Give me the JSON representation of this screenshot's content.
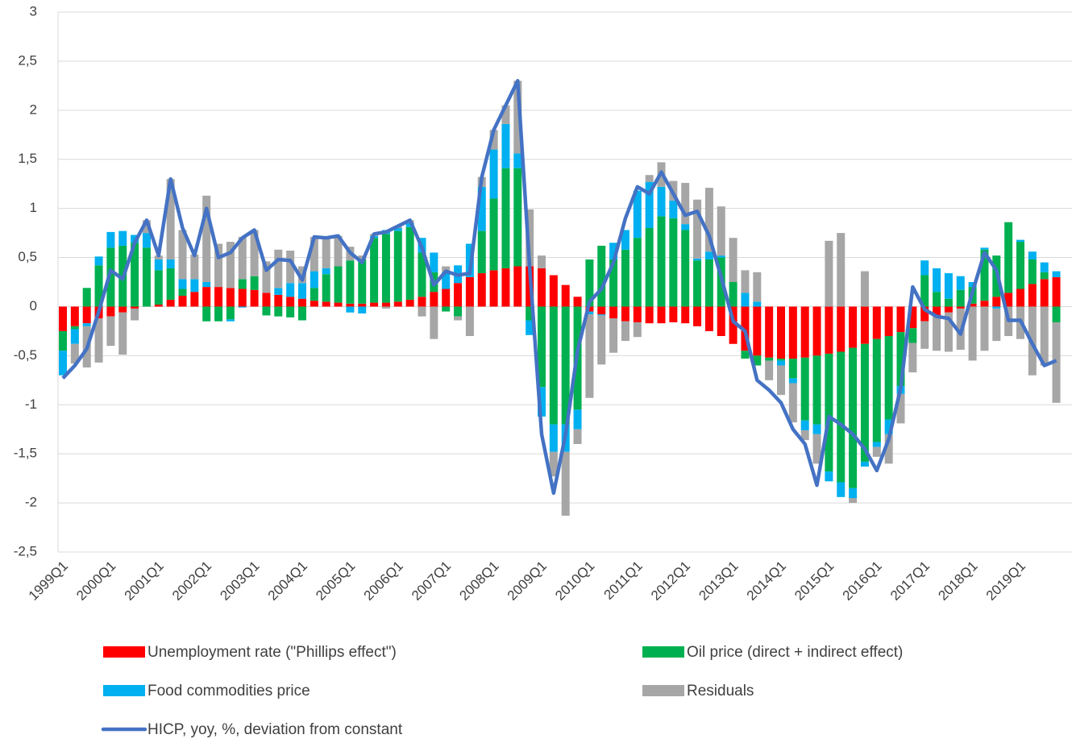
{
  "chart_data": {
    "type": "bar",
    "stacked": true,
    "categories": [
      "1999Q1",
      null,
      null,
      null,
      "2000Q1",
      null,
      null,
      null,
      "2001Q1",
      null,
      null,
      null,
      "2002Q1",
      null,
      null,
      null,
      "2003Q1",
      null,
      null,
      null,
      "2004Q1",
      null,
      null,
      null,
      "2005Q1",
      null,
      null,
      null,
      "2006Q1",
      null,
      null,
      null,
      "2007Q1",
      null,
      null,
      null,
      "2008Q1",
      null,
      null,
      null,
      "2009Q1",
      null,
      null,
      null,
      "2010Q1",
      null,
      null,
      null,
      "2011Q1",
      null,
      null,
      null,
      "2012Q1",
      null,
      null,
      null,
      "2013Q1",
      null,
      null,
      null,
      "2014Q1",
      null,
      null,
      null,
      "2015Q1",
      null,
      null,
      null,
      "2016Q1",
      null,
      null,
      null,
      "2017Q1",
      null,
      null,
      null,
      "2018Q1",
      null,
      null,
      null,
      "2019Q1",
      null,
      null,
      null
    ],
    "ylim": [
      -2.5,
      3
    ],
    "yticks": [
      {
        "value": -2.5,
        "label": "-2,5"
      },
      -2,
      {
        "value": -1.5,
        "label": "-1,5"
      },
      -1,
      {
        "value": -0.5,
        "label": "-0,5"
      },
      0,
      {
        "value": 0.5,
        "label": "0,5"
      },
      1,
      {
        "value": 1.5,
        "label": "1,5"
      },
      2,
      {
        "value": 2.5,
        "label": "2,5"
      },
      3
    ],
    "grid": true,
    "legend": "bottom",
    "series": [
      {
        "name": "Unemployment rate (\"Phillips effect\")",
        "color": "#ff0000",
        "values": [
          -0.25,
          -0.2,
          -0.17,
          -0.12,
          -0.1,
          -0.06,
          -0.02,
          0.0,
          0.02,
          0.07,
          0.11,
          0.15,
          0.2,
          0.2,
          0.19,
          0.18,
          0.17,
          0.14,
          0.12,
          0.1,
          0.08,
          0.06,
          0.05,
          0.04,
          0.03,
          0.03,
          0.04,
          0.04,
          0.05,
          0.07,
          0.1,
          0.15,
          0.18,
          0.24,
          0.3,
          0.34,
          0.37,
          0.39,
          0.41,
          0.41,
          0.39,
          0.32,
          0.22,
          0.1,
          -0.05,
          -0.08,
          -0.12,
          -0.15,
          -0.16,
          -0.17,
          -0.17,
          -0.16,
          -0.17,
          -0.2,
          -0.25,
          -0.3,
          -0.38,
          -0.45,
          -0.5,
          -0.52,
          -0.53,
          -0.53,
          -0.52,
          -0.5,
          -0.48,
          -0.46,
          -0.42,
          -0.38,
          -0.33,
          -0.3,
          -0.26,
          -0.22,
          -0.15,
          -0.1,
          -0.06,
          -0.02,
          0.03,
          0.06,
          0.1,
          0.14,
          0.18,
          0.23,
          0.28,
          0.3
        ]
      },
      {
        "name": "Oil price (direct + indirect effect)",
        "color": "#00b050",
        "values": [
          -0.2,
          -0.03,
          0.19,
          0.42,
          0.6,
          0.62,
          0.65,
          0.6,
          0.35,
          0.32,
          0.07,
          0.0,
          -0.15,
          -0.15,
          -0.13,
          0.1,
          0.14,
          -0.09,
          -0.1,
          -0.11,
          -0.14,
          0.13,
          0.28,
          0.37,
          0.44,
          0.45,
          0.66,
          0.7,
          0.72,
          0.74,
          0.45,
          0.2,
          -0.05,
          -0.1,
          0.0,
          0.43,
          0.73,
          1.02,
          1.0,
          -0.14,
          -0.82,
          -1.2,
          -1.2,
          -1.05,
          0.48,
          0.62,
          0.48,
          0.58,
          0.7,
          0.8,
          0.92,
          0.9,
          0.78,
          0.47,
          0.48,
          0.5,
          0.25,
          -0.08,
          -0.1,
          -0.03,
          -0.02,
          -0.2,
          -0.64,
          -0.7,
          -1.2,
          -1.33,
          -1.43,
          -1.2,
          -1.05,
          -0.85,
          -0.55,
          -0.15,
          0.32,
          0.15,
          0.08,
          0.17,
          0.17,
          0.52,
          0.42,
          0.72,
          0.48,
          0.25,
          0.07,
          -0.16
        ]
      },
      {
        "name": "Food commodities price",
        "color": "#00b0f0",
        "values": [
          -0.25,
          -0.15,
          -0.03,
          0.09,
          0.16,
          0.15,
          0.08,
          0.15,
          0.11,
          0.09,
          0.1,
          0.13,
          0.05,
          0.0,
          -0.02,
          -0.01,
          0.0,
          0.0,
          0.07,
          0.14,
          0.16,
          0.17,
          0.06,
          0.0,
          -0.06,
          -0.07,
          0.02,
          0.04,
          0.03,
          0.04,
          0.15,
          0.2,
          0.17,
          0.18,
          0.34,
          0.45,
          0.5,
          0.45,
          0.15,
          -0.15,
          -0.3,
          -0.28,
          -0.28,
          -0.2,
          -0.03,
          -0.01,
          0.17,
          0.2,
          0.48,
          0.47,
          0.3,
          0.18,
          0.06,
          0.02,
          0.08,
          0.02,
          0.0,
          0.14,
          0.05,
          0.0,
          -0.05,
          -0.05,
          -0.1,
          -0.1,
          -0.1,
          -0.15,
          -0.1,
          -0.05,
          -0.05,
          -0.15,
          -0.08,
          0.0,
          0.15,
          0.24,
          0.26,
          0.14,
          0.05,
          0.02,
          -0.02,
          0.0,
          0.02,
          0.08,
          0.1,
          0.06
        ]
      },
      {
        "name": "Residuals",
        "color": "#a6a6a6",
        "values": [
          0.0,
          -0.2,
          -0.42,
          -0.45,
          -0.3,
          -0.43,
          -0.12,
          0.13,
          0.04,
          0.82,
          0.5,
          0.25,
          0.88,
          0.44,
          0.47,
          0.43,
          0.47,
          0.32,
          0.39,
          0.33,
          0.17,
          0.35,
          0.31,
          0.31,
          0.14,
          0.04,
          0.02,
          -0.02,
          0.02,
          0.03,
          -0.1,
          -0.33,
          0.06,
          -0.04,
          -0.3,
          0.1,
          0.2,
          0.19,
          0.74,
          0.58,
          0.13,
          -0.25,
          -0.65,
          -0.15,
          -0.85,
          -0.5,
          -0.35,
          -0.2,
          -0.15,
          0.07,
          0.25,
          0.2,
          0.42,
          0.6,
          0.65,
          0.5,
          0.45,
          0.23,
          0.3,
          -0.2,
          -0.3,
          -0.4,
          -0.1,
          -0.3,
          0.67,
          0.75,
          -0.05,
          0.36,
          -0.1,
          -0.3,
          -0.3,
          -0.3,
          -0.28,
          -0.35,
          -0.4,
          -0.42,
          -0.55,
          -0.45,
          -0.33,
          -0.3,
          -0.33,
          -0.7,
          -0.6,
          -0.82
        ]
      },
      {
        "name": "HICP, yoy, %, deviation from constant",
        "type": "line",
        "color": "#4472c4",
        "values": [
          -0.73,
          -0.6,
          -0.43,
          -0.05,
          0.37,
          0.28,
          0.65,
          0.88,
          0.52,
          1.3,
          0.8,
          0.52,
          1.0,
          0.5,
          0.55,
          0.7,
          0.78,
          0.37,
          0.48,
          0.47,
          0.27,
          0.71,
          0.7,
          0.72,
          0.55,
          0.45,
          0.74,
          0.76,
          0.82,
          0.88,
          0.6,
          0.22,
          0.36,
          0.32,
          0.34,
          1.32,
          1.8,
          2.05,
          2.3,
          0.4,
          -1.3,
          -1.9,
          -1.3,
          -0.45,
          0.05,
          0.18,
          0.45,
          0.9,
          1.22,
          1.15,
          1.37,
          1.15,
          0.93,
          0.97,
          0.72,
          0.3,
          -0.15,
          -0.25,
          -0.75,
          -0.85,
          -0.98,
          -1.25,
          -1.4,
          -1.82,
          -1.12,
          -1.2,
          -1.3,
          -1.45,
          -1.67,
          -1.35,
          -0.83,
          0.2,
          -0.03,
          -0.1,
          -0.12,
          -0.28,
          0.15,
          0.55,
          0.37,
          -0.14,
          -0.14,
          -0.38,
          -0.6,
          -0.55
        ]
      }
    ]
  }
}
